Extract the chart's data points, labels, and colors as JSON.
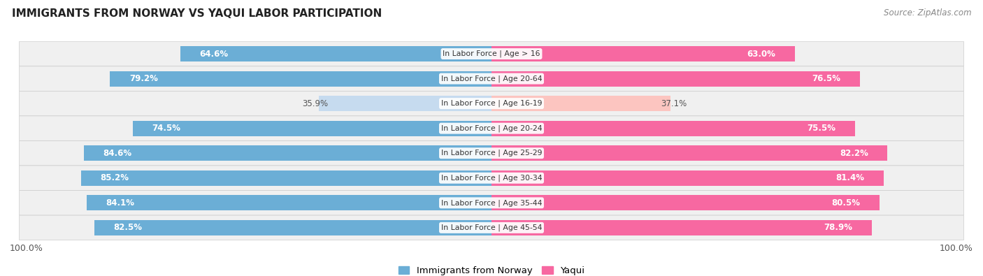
{
  "title": "IMMIGRANTS FROM NORWAY VS YAQUI LABOR PARTICIPATION",
  "source": "Source: ZipAtlas.com",
  "categories": [
    "In Labor Force | Age > 16",
    "In Labor Force | Age 20-64",
    "In Labor Force | Age 16-19",
    "In Labor Force | Age 20-24",
    "In Labor Force | Age 25-29",
    "In Labor Force | Age 30-34",
    "In Labor Force | Age 35-44",
    "In Labor Force | Age 45-54"
  ],
  "norway_values": [
    64.6,
    79.2,
    35.9,
    74.5,
    84.6,
    85.2,
    84.1,
    82.5
  ],
  "yaqui_values": [
    63.0,
    76.5,
    37.1,
    75.5,
    82.2,
    81.4,
    80.5,
    78.9
  ],
  "norway_color": "#6baed6",
  "norway_color_light": "#c6dbef",
  "yaqui_color": "#f768a1",
  "yaqui_color_light": "#fcc5c0",
  "row_bg_even": "#efefef",
  "row_bg_odd": "#e8e8e8",
  "max_value": 100.0,
  "bar_height": 0.62,
  "figsize": [
    14.06,
    3.95
  ],
  "dpi": 100,
  "legend_labels": [
    "Immigrants from Norway",
    "Yaqui"
  ]
}
